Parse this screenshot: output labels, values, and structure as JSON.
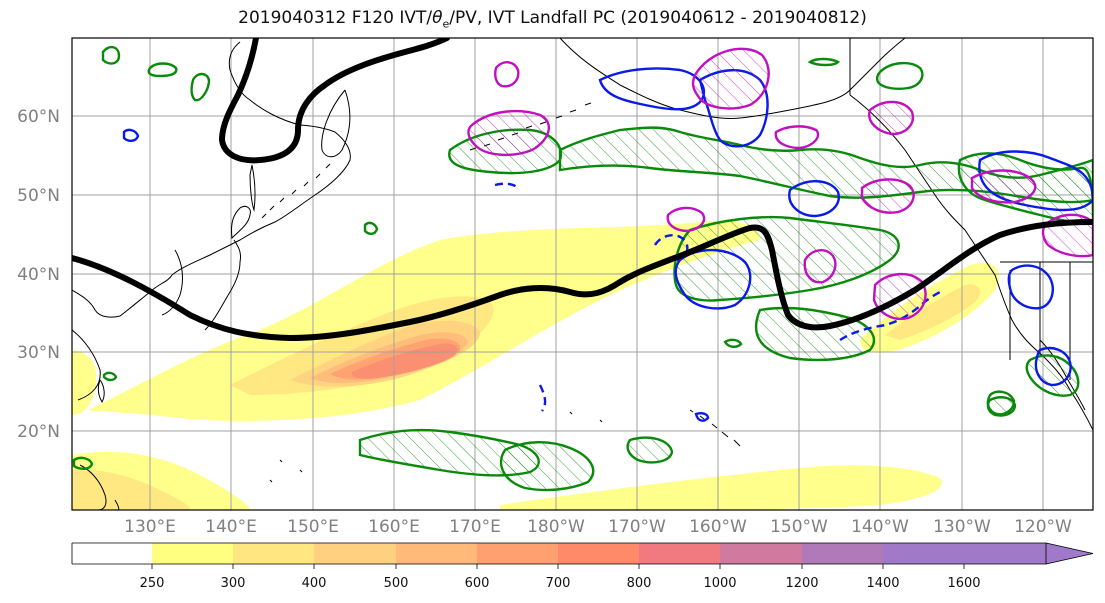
{
  "title": {
    "prefix": "2019040312 F120 IVT/",
    "theta_symbol": "θ",
    "theta_sub": "e",
    "suffix": "/PV, IVT Landfall PC (2019040612 - 2019040812)"
  },
  "map": {
    "lat_labels": [
      "60°N",
      "50°N",
      "40°N",
      "30°N",
      "20°N"
    ],
    "lon_labels": [
      "130°E",
      "140°E",
      "150°E",
      "160°E",
      "170°E",
      "180°W",
      "170°W",
      "160°W",
      "150°W",
      "140°W",
      "130°W",
      "120°W"
    ],
    "fill_colors": [
      "#ffff80",
      "#ffe680",
      "#ffd080",
      "#ffba7a",
      "#ffa070",
      "#ff8a6a",
      "#f07a80",
      "#d07aa0",
      "#b07ab8",
      "#a07ac8"
    ],
    "contour_colors": {
      "jet": "#000000",
      "green": "#0a8a0a",
      "blue": "#0a1ae8",
      "magenta": "#c010c0"
    }
  },
  "colorbar": {
    "ticks": [
      "250",
      "300",
      "400",
      "500",
      "600",
      "700",
      "800",
      "1000",
      "1200",
      "1400",
      "1600"
    ],
    "colors": [
      "#ffffff",
      "#ffff80",
      "#ffe680",
      "#ffd080",
      "#ffba7a",
      "#ffa070",
      "#ff8a6a",
      "#f07a80",
      "#d07aa0",
      "#b07ab8",
      "#a07ac8",
      "#a07ac8"
    ]
  }
}
